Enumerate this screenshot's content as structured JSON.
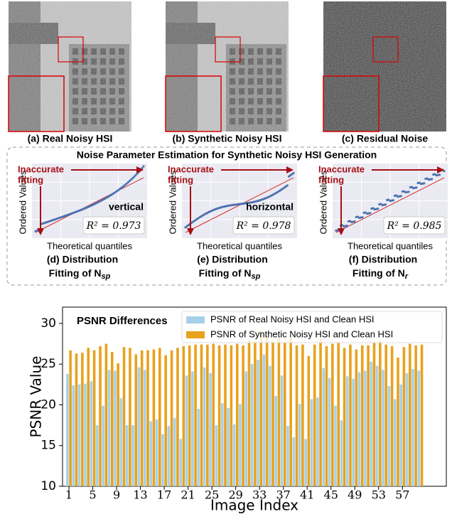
{
  "images": [
    {
      "caption": "(a) Real Noisy HSI"
    },
    {
      "caption": "(b) Synthetic Noisy HSI"
    },
    {
      "caption": "(c) Residual Noise"
    }
  ],
  "estimation": {
    "title": "Noise Parameter Estimation for Synthetic Noisy HSI Generation",
    "plots": [
      {
        "annotation_line1": "Inaccurate",
        "annotation_line2": "fitting",
        "y_label": "Ordered Values",
        "x_label": "Theoretical quantiles",
        "direction": "vertical",
        "r2_label": "R² = 0.973",
        "caption_line1": "(d) Distribution",
        "caption_line2": "Fitting of N",
        "caption_sub": "sp"
      },
      {
        "annotation_line1": "Inaccurate",
        "annotation_line2": "fitting",
        "y_label": "Ordered Values",
        "x_label": "Theoretical quantiles",
        "direction": "horizontal",
        "r2_label": "R² = 0.978",
        "caption_line1": "(e) Distribution",
        "caption_line2": "Fitting of N",
        "caption_sub": "sp"
      },
      {
        "annotation_line1": "Inaccurate",
        "annotation_line2": "fitting",
        "y_label": "Ordered Values",
        "x_label": "Theoretical quantiles",
        "r2_label": "R² = 0.985",
        "caption_line1": "(f) Distribution",
        "caption_line2": "Fitting of N",
        "caption_sub": "r"
      }
    ]
  },
  "chart_data": {
    "type": "bar",
    "annotation": "PSNR Differences",
    "x_label": "Image Index",
    "y_label": "PSNR Value",
    "categories": [
      "1",
      null,
      null,
      null,
      "5",
      null,
      null,
      null,
      "9",
      null,
      null,
      null,
      "13",
      null,
      null,
      null,
      "17",
      null,
      null,
      null,
      "21",
      null,
      null,
      null,
      "25",
      null,
      null,
      null,
      "29",
      null,
      null,
      null,
      "33",
      null,
      null,
      null,
      "37",
      null,
      null,
      null,
      "41",
      null,
      null,
      null,
      "45",
      null,
      null,
      null,
      "49",
      null,
      null,
      null,
      "53",
      null,
      null,
      null,
      "57",
      null,
      null,
      null
    ],
    "series": [
      {
        "name": "PSNR of Real Noisy HSI and Clean HSI",
        "color": "#a6d0e8",
        "values": [
          23.8,
          22.4,
          22.5,
          22.6,
          22.9,
          17.5,
          19.9,
          24.3,
          24.2,
          20.8,
          17.5,
          17.5,
          24.6,
          24.3,
          18.0,
          18.2,
          16.4,
          17.4,
          18.4,
          15.8,
          23.6,
          24.1,
          19.5,
          24.6,
          23.9,
          17.5,
          20.2,
          19.6,
          17.6,
          20.1,
          24.1,
          25.0,
          25.5,
          26.2,
          24.8,
          21.1,
          23.6,
          17.4,
          16.0,
          20.1,
          15.8,
          20.7,
          20.9,
          24.5,
          23.3,
          19.9,
          18.1,
          23.5,
          23.2,
          24.0,
          24.2,
          25.3,
          24.8,
          24.3,
          22.3,
          20.7,
          22.5,
          23.9,
          24.4,
          24.2
        ]
      },
      {
        "name": "PSNR of Synthetic Noisy HSI and Clean HSI",
        "color": "#e8a21e",
        "values": [
          26.7,
          26.3,
          26.4,
          27.0,
          26.7,
          27.2,
          27.5,
          26.5,
          25.1,
          27.1,
          27.0,
          26.2,
          26.7,
          26.7,
          26.8,
          27.0,
          26.1,
          26.7,
          27.0,
          27.2,
          27.3,
          27.4,
          27.4,
          27.4,
          27.5,
          27.3,
          27.4,
          27.3,
          27.5,
          27.3,
          28.0,
          27.8,
          29.1,
          28.2,
          27.8,
          28.2,
          27.6,
          28.2,
          27.3,
          27.4,
          26.0,
          27.4,
          28.1,
          27.2,
          27.5,
          27.6,
          27.0,
          27.4,
          26.8,
          27.3,
          27.3,
          27.6,
          27.9,
          27.4,
          27.2,
          25.8,
          27.1,
          27.5,
          27.3,
          27.4
        ]
      }
    ],
    "ylim": [
      10,
      32
    ],
    "yticks": [
      10,
      15,
      20,
      25,
      30
    ],
    "legend": "upper right"
  }
}
